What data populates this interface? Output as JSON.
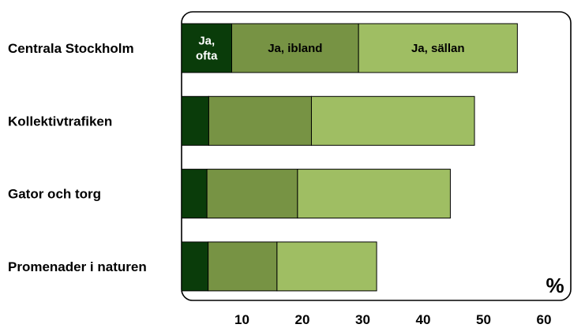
{
  "chart_data": {
    "type": "bar",
    "orientation": "horizontal",
    "stacked": true,
    "categories": [
      "Centrala Stockholm",
      "Kollektivtrafiken",
      "Gator och torg",
      "Promenader i naturen"
    ],
    "series": [
      {
        "name": "Ja, ofta",
        "label_lines": [
          "Ja,",
          "ofta"
        ],
        "color": "#0a3c0a",
        "text_color": "#ffffff",
        "values": [
          8.3,
          4.5,
          4.2,
          4.4
        ]
      },
      {
        "name": "Ja, ibland",
        "label_lines": [
          "Ja, ibland"
        ],
        "color": "#779344",
        "text_color": "#000000",
        "values": [
          21.0,
          17.0,
          15.0,
          11.4
        ]
      },
      {
        "name": "Ja, sällan",
        "label_lines": [
          "Ja, sällan"
        ],
        "color": "#9fbe63",
        "text_color": "#000000",
        "values": [
          26.3,
          27.0,
          25.3,
          16.5
        ]
      }
    ],
    "xlim": [
      0,
      60
    ],
    "xticks": [
      10,
      20,
      30,
      40,
      50,
      60
    ],
    "unit": "%",
    "legend": "inline-first-bar",
    "grid": false
  }
}
